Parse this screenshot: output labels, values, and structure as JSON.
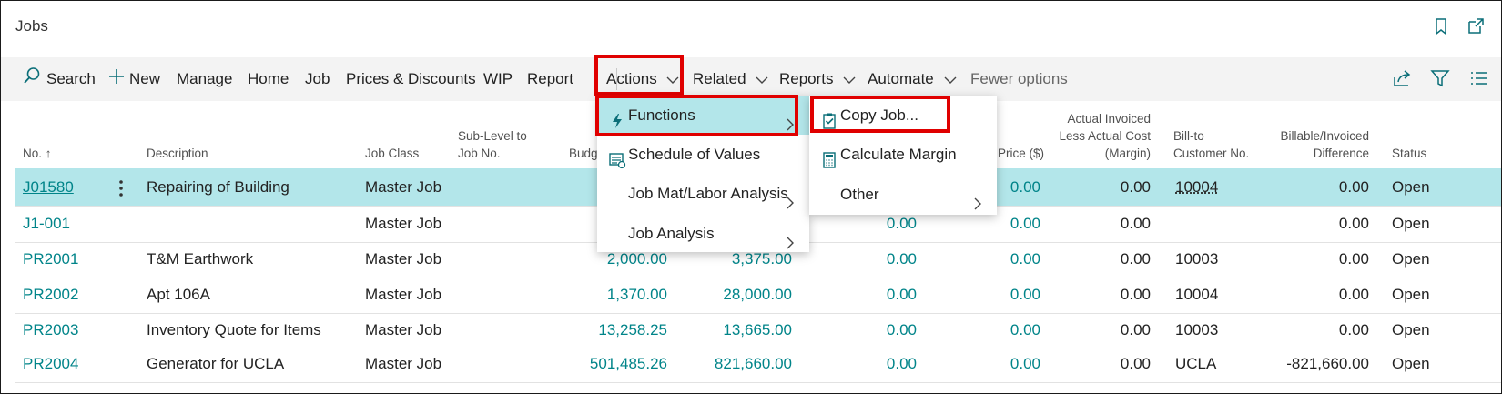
{
  "page": {
    "title": "Jobs"
  },
  "actionbar": {
    "search": "Search",
    "new": "New",
    "manage": "Manage",
    "home": "Home",
    "job": "Job",
    "prices": "Prices & Discounts",
    "wip": "WIP",
    "report": "Report",
    "actions": "Actions",
    "related": "Related",
    "reports": "Reports",
    "automate": "Automate",
    "fewer": "Fewer options"
  },
  "columns": {
    "no": "No. ↑",
    "description": "Description",
    "job_class": "Job Class",
    "sublevel_1": "Sub-Level to",
    "sublevel_2": "Job No.",
    "budget": "Budg",
    "price": "Price ($)",
    "margin_1": "Actual Invoiced",
    "margin_2": "Less Actual Cost",
    "margin_3": "(Margin)",
    "billto_1": "Bill-to",
    "billto_2": "Customer No.",
    "billable_1": "Billable/Invoiced",
    "billable_2": "Difference",
    "status": "Status"
  },
  "rows": [
    {
      "no": "J01580",
      "description": "Repairing of Building",
      "job_class": "Master Job",
      "budget": "",
      "col5": "",
      "col6": "",
      "price": "0.00",
      "margin": "0.00",
      "billto": "10004",
      "billable": "0.00",
      "status": "Open"
    },
    {
      "no": "J1-001",
      "description": "",
      "job_class": "Master Job",
      "budget": "",
      "col5": "",
      "col6": "0.00",
      "price": "0.00",
      "margin": "0.00",
      "billto": "",
      "billable": "0.00",
      "status": "Open"
    },
    {
      "no": "PR2001",
      "description": "T&M Earthwork",
      "job_class": "Master Job",
      "budget": "2,000.00",
      "col5": "3,375.00",
      "col6": "0.00",
      "price": "0.00",
      "margin": "0.00",
      "billto": "10003",
      "billable": "0.00",
      "status": "Open"
    },
    {
      "no": "PR2002",
      "description": "Apt 106A",
      "job_class": "Master Job",
      "budget": "1,370.00",
      "col5": "28,000.00",
      "col6": "0.00",
      "price": "0.00",
      "margin": "0.00",
      "billto": "10004",
      "billable": "0.00",
      "status": "Open"
    },
    {
      "no": "PR2003",
      "description": "Inventory Quote for Items",
      "job_class": "Master Job",
      "budget": "13,258.25",
      "col5": "13,665.00",
      "col6": "0.00",
      "price": "0.00",
      "margin": "0.00",
      "billto": "10003",
      "billable": "0.00",
      "status": "Open"
    },
    {
      "no": "PR2004",
      "description": "Generator for UCLA",
      "job_class": "Master Job",
      "budget": "501,485.26",
      "col5": "821,660.00",
      "col6": "0.00",
      "price": "0.00",
      "margin": "0.00",
      "billto": "UCLA",
      "billable": "-821,660.00",
      "status": "Open"
    }
  ],
  "actions_menu": [
    {
      "label": "Functions",
      "icon": "lightning-icon"
    },
    {
      "label": "Schedule of Values",
      "icon": "schedule-icon"
    },
    {
      "label": "Job Mat/Labor Analysis",
      "icon": ""
    },
    {
      "label": "Job Analysis",
      "icon": ""
    }
  ],
  "functions_menu": [
    {
      "label": "Copy Job...",
      "icon": "copy-job-icon"
    },
    {
      "label": "Calculate Margin",
      "icon": "calculator-icon"
    },
    {
      "label": "Other",
      "icon": ""
    }
  ],
  "colors": {
    "accent": "#008489",
    "selected_row": "#b3e6ea",
    "highlight_box": "#e00000"
  }
}
